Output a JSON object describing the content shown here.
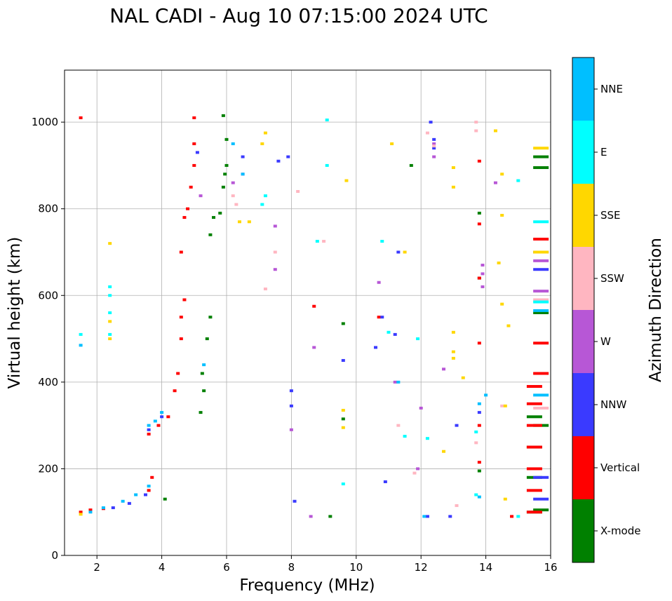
{
  "chart_data": {
    "type": "scatter",
    "title": "NAL CADI - Aug 10 07:15:00 2024 UTC",
    "xlabel": "Frequency (MHz)",
    "ylabel": "Virtual height (km)",
    "xlim": [
      1,
      16
    ],
    "ylim": [
      0,
      1120
    ],
    "xticks": [
      2,
      4,
      6,
      8,
      10,
      12,
      14,
      16
    ],
    "yticks": [
      0,
      200,
      400,
      600,
      800,
      1000
    ],
    "grid": true,
    "colorbar": {
      "label": "Azimuth Direction",
      "categories": [
        {
          "name": "X-mode",
          "color": "#008000"
        },
        {
          "name": "Vertical",
          "color": "#ff0000"
        },
        {
          "name": "NNW",
          "color": "#3a3aff"
        },
        {
          "name": "W",
          "color": "#b757d6"
        },
        {
          "name": "SSW",
          "color": "#ffb6c1"
        },
        {
          "name": "SSE",
          "color": "#ffd700"
        },
        {
          "name": "E",
          "color": "#00ffff"
        },
        {
          "name": "NNE",
          "color": "#00bfff"
        }
      ]
    },
    "series": [
      {
        "name": "X-mode",
        "points": [
          [
            4.1,
            130
          ],
          [
            5.2,
            330
          ],
          [
            5.3,
            380
          ],
          [
            5.25,
            420
          ],
          [
            5.4,
            500
          ],
          [
            5.5,
            550
          ],
          [
            5.5,
            740
          ],
          [
            5.6,
            780
          ],
          [
            5.8,
            790
          ],
          [
            5.9,
            850
          ],
          [
            5.95,
            880
          ],
          [
            6.0,
            900
          ],
          [
            6.0,
            960
          ],
          [
            5.9,
            1015
          ],
          [
            9.2,
            90
          ],
          [
            9.6,
            315
          ],
          [
            9.6,
            535
          ],
          [
            11.7,
            900
          ],
          [
            13.8,
            640
          ],
          [
            13.8,
            790
          ],
          [
            13.8,
            195
          ],
          [
            15.5,
            100
          ],
          [
            15.5,
            180
          ],
          [
            15.5,
            250
          ],
          [
            15.5,
            320
          ],
          [
            15.7,
            105
          ],
          [
            15.7,
            300
          ],
          [
            15.7,
            560
          ],
          [
            15.7,
            895
          ],
          [
            15.7,
            920
          ]
        ]
      },
      {
        "name": "Vertical",
        "points": [
          [
            1.5,
            100
          ],
          [
            1.8,
            105
          ],
          [
            2.2,
            108
          ],
          [
            3.6,
            150
          ],
          [
            3.7,
            180
          ],
          [
            3.6,
            280
          ],
          [
            3.9,
            300
          ],
          [
            4.2,
            320
          ],
          [
            4.4,
            380
          ],
          [
            4.5,
            420
          ],
          [
            4.6,
            500
          ],
          [
            4.6,
            550
          ],
          [
            4.7,
            590
          ],
          [
            4.6,
            700
          ],
          [
            4.7,
            780
          ],
          [
            4.8,
            800
          ],
          [
            4.9,
            850
          ],
          [
            5.0,
            900
          ],
          [
            5.0,
            950
          ],
          [
            5.0,
            1010
          ],
          [
            1.5,
            1010
          ],
          [
            8.7,
            575
          ],
          [
            10.7,
            550
          ],
          [
            13.8,
            640
          ],
          [
            13.8,
            765
          ],
          [
            13.8,
            910
          ],
          [
            13.8,
            490
          ],
          [
            13.8,
            215
          ],
          [
            13.8,
            300
          ],
          [
            14.8,
            90
          ],
          [
            15.5,
            100
          ],
          [
            15.5,
            150
          ],
          [
            15.5,
            200
          ],
          [
            15.5,
            250
          ],
          [
            15.5,
            300
          ],
          [
            15.5,
            350
          ],
          [
            15.5,
            390
          ],
          [
            15.7,
            420
          ],
          [
            15.7,
            490
          ],
          [
            15.7,
            730
          ]
        ]
      },
      {
        "name": "NNW",
        "points": [
          [
            2.5,
            110
          ],
          [
            3.0,
            120
          ],
          [
            3.5,
            140
          ],
          [
            3.6,
            290
          ],
          [
            4.0,
            320
          ],
          [
            5.1,
            930
          ],
          [
            6.5,
            920
          ],
          [
            7.6,
            910
          ],
          [
            7.9,
            920
          ],
          [
            9.6,
            450
          ],
          [
            10.6,
            480
          ],
          [
            10.8,
            550
          ],
          [
            11.2,
            510
          ],
          [
            11.3,
            700
          ],
          [
            12.3,
            1000
          ],
          [
            12.4,
            960
          ],
          [
            12.4,
            940
          ],
          [
            12.2,
            90
          ],
          [
            12.9,
            90
          ],
          [
            13.1,
            300
          ],
          [
            13.8,
            330
          ],
          [
            8.0,
            380
          ],
          [
            8.0,
            345
          ],
          [
            8.1,
            125
          ],
          [
            10.9,
            170
          ],
          [
            15.7,
            130
          ],
          [
            15.7,
            180
          ],
          [
            15.7,
            660
          ],
          [
            15.7,
            700
          ]
        ]
      },
      {
        "name": "W",
        "points": [
          [
            5.2,
            830
          ],
          [
            6.2,
            860
          ],
          [
            6.5,
            880
          ],
          [
            7.5,
            760
          ],
          [
            7.5,
            660
          ],
          [
            10.7,
            630
          ],
          [
            12.4,
            950
          ],
          [
            12.4,
            920
          ],
          [
            13.9,
            650
          ],
          [
            13.9,
            620
          ],
          [
            13.9,
            670
          ],
          [
            14.3,
            860
          ],
          [
            12.7,
            430
          ],
          [
            11.2,
            400
          ],
          [
            11.9,
            200
          ],
          [
            12.0,
            340
          ],
          [
            8.0,
            290
          ],
          [
            8.7,
            480
          ],
          [
            8.6,
            90
          ],
          [
            15.7,
            610
          ],
          [
            15.7,
            680
          ]
        ]
      },
      {
        "name": "SSW",
        "points": [
          [
            6.2,
            830
          ],
          [
            6.3,
            810
          ],
          [
            8.2,
            840
          ],
          [
            9.0,
            725
          ],
          [
            12.2,
            975
          ],
          [
            12.4,
            945
          ],
          [
            13.7,
            1000
          ],
          [
            13.7,
            980
          ],
          [
            13.1,
            115
          ],
          [
            13.7,
            260
          ],
          [
            14.5,
            345
          ],
          [
            11.3,
            300
          ],
          [
            11.8,
            190
          ],
          [
            7.5,
            700
          ],
          [
            7.2,
            615
          ],
          [
            15.7,
            340
          ],
          [
            15.7,
            590
          ]
        ]
      },
      {
        "name": "SSE",
        "points": [
          [
            1.5,
            95
          ],
          [
            2.4,
            500
          ],
          [
            2.4,
            540
          ],
          [
            2.4,
            720
          ],
          [
            6.4,
            770
          ],
          [
            6.7,
            770
          ],
          [
            7.1,
            950
          ],
          [
            7.2,
            975
          ],
          [
            9.6,
            335
          ],
          [
            9.6,
            295
          ],
          [
            9.7,
            865
          ],
          [
            11.1,
            950
          ],
          [
            11.5,
            700
          ],
          [
            12.7,
            240
          ],
          [
            13.0,
            895
          ],
          [
            13.0,
            850
          ],
          [
            13.0,
            515
          ],
          [
            13.0,
            470
          ],
          [
            13.0,
            455
          ],
          [
            13.3,
            410
          ],
          [
            14.3,
            980
          ],
          [
            14.5,
            880
          ],
          [
            14.5,
            785
          ],
          [
            14.4,
            675
          ],
          [
            14.5,
            580
          ],
          [
            14.7,
            530
          ],
          [
            14.6,
            130
          ],
          [
            14.6,
            345
          ],
          [
            15.7,
            700
          ],
          [
            15.7,
            940
          ]
        ]
      },
      {
        "name": "E",
        "points": [
          [
            1.5,
            510
          ],
          [
            2.4,
            620
          ],
          [
            2.4,
            600
          ],
          [
            2.4,
            560
          ],
          [
            2.4,
            510
          ],
          [
            7.2,
            830
          ],
          [
            7.1,
            810
          ],
          [
            8.8,
            725
          ],
          [
            9.1,
            1005
          ],
          [
            9.1,
            900
          ],
          [
            9.6,
            165
          ],
          [
            10.8,
            725
          ],
          [
            11.0,
            515
          ],
          [
            11.5,
            275
          ],
          [
            11.9,
            500
          ],
          [
            12.2,
            270
          ],
          [
            13.7,
            285
          ],
          [
            13.7,
            140
          ],
          [
            15.0,
            90
          ],
          [
            15.0,
            865
          ],
          [
            15.7,
            770
          ],
          [
            15.7,
            585
          ]
        ]
      },
      {
        "name": "NNE",
        "points": [
          [
            1.5,
            485
          ],
          [
            1.8,
            100
          ],
          [
            2.2,
            110
          ],
          [
            2.8,
            125
          ],
          [
            3.2,
            140
          ],
          [
            3.6,
            160
          ],
          [
            3.6,
            300
          ],
          [
            3.8,
            310
          ],
          [
            4.0,
            330
          ],
          [
            5.3,
            440
          ],
          [
            6.2,
            950
          ],
          [
            6.5,
            880
          ],
          [
            11.3,
            400
          ],
          [
            12.1,
            90
          ],
          [
            13.8,
            135
          ],
          [
            13.8,
            350
          ],
          [
            14.0,
            370
          ],
          [
            15.7,
            370
          ],
          [
            15.7,
            565
          ]
        ]
      }
    ]
  }
}
